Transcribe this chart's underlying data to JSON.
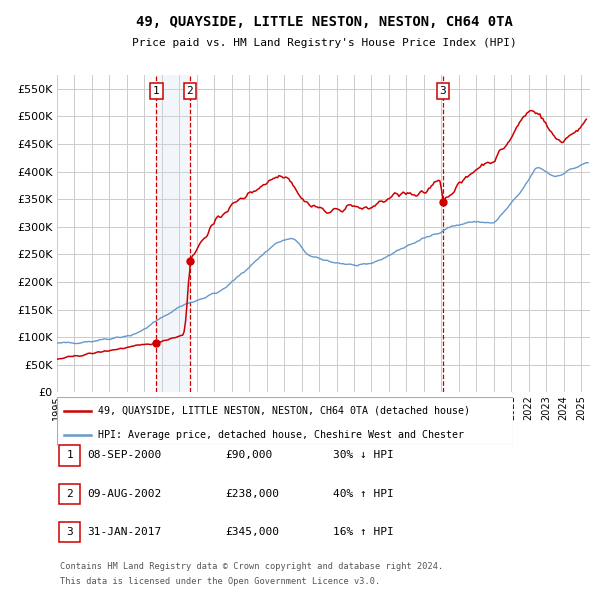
{
  "title": "49, QUAYSIDE, LITTLE NESTON, NESTON, CH64 0TA",
  "subtitle": "Price paid vs. HM Land Registry's House Price Index (HPI)",
  "ylim": [
    0,
    575000
  ],
  "yticks": [
    0,
    50000,
    100000,
    150000,
    200000,
    250000,
    300000,
    350000,
    400000,
    450000,
    500000,
    550000
  ],
  "xlim_start": 1995.0,
  "xlim_end": 2025.5,
  "sale_color": "#cc0000",
  "hpi_color": "#6699cc",
  "shade_color": "#ccddf0",
  "sale_label": "49, QUAYSIDE, LITTLE NESTON, NESTON, CH64 0TA (detached house)",
  "hpi_label": "HPI: Average price, detached house, Cheshire West and Chester",
  "transactions": [
    {
      "num": 1,
      "date_label": "08-SEP-2000",
      "date_x": 2000.69,
      "price": 90000,
      "pct": "30%",
      "dir": "↓"
    },
    {
      "num": 2,
      "date_label": "09-AUG-2002",
      "date_x": 2002.61,
      "price": 238000,
      "pct": "40%",
      "dir": "↑"
    },
    {
      "num": 3,
      "date_label": "31-JAN-2017",
      "date_x": 2017.08,
      "price": 345000,
      "pct": "16%",
      "dir": "↑"
    }
  ],
  "footer_line1": "Contains HM Land Registry data © Crown copyright and database right 2024.",
  "footer_line2": "This data is licensed under the Open Government Licence v3.0.",
  "background_color": "#ffffff",
  "grid_color": "#cccccc"
}
